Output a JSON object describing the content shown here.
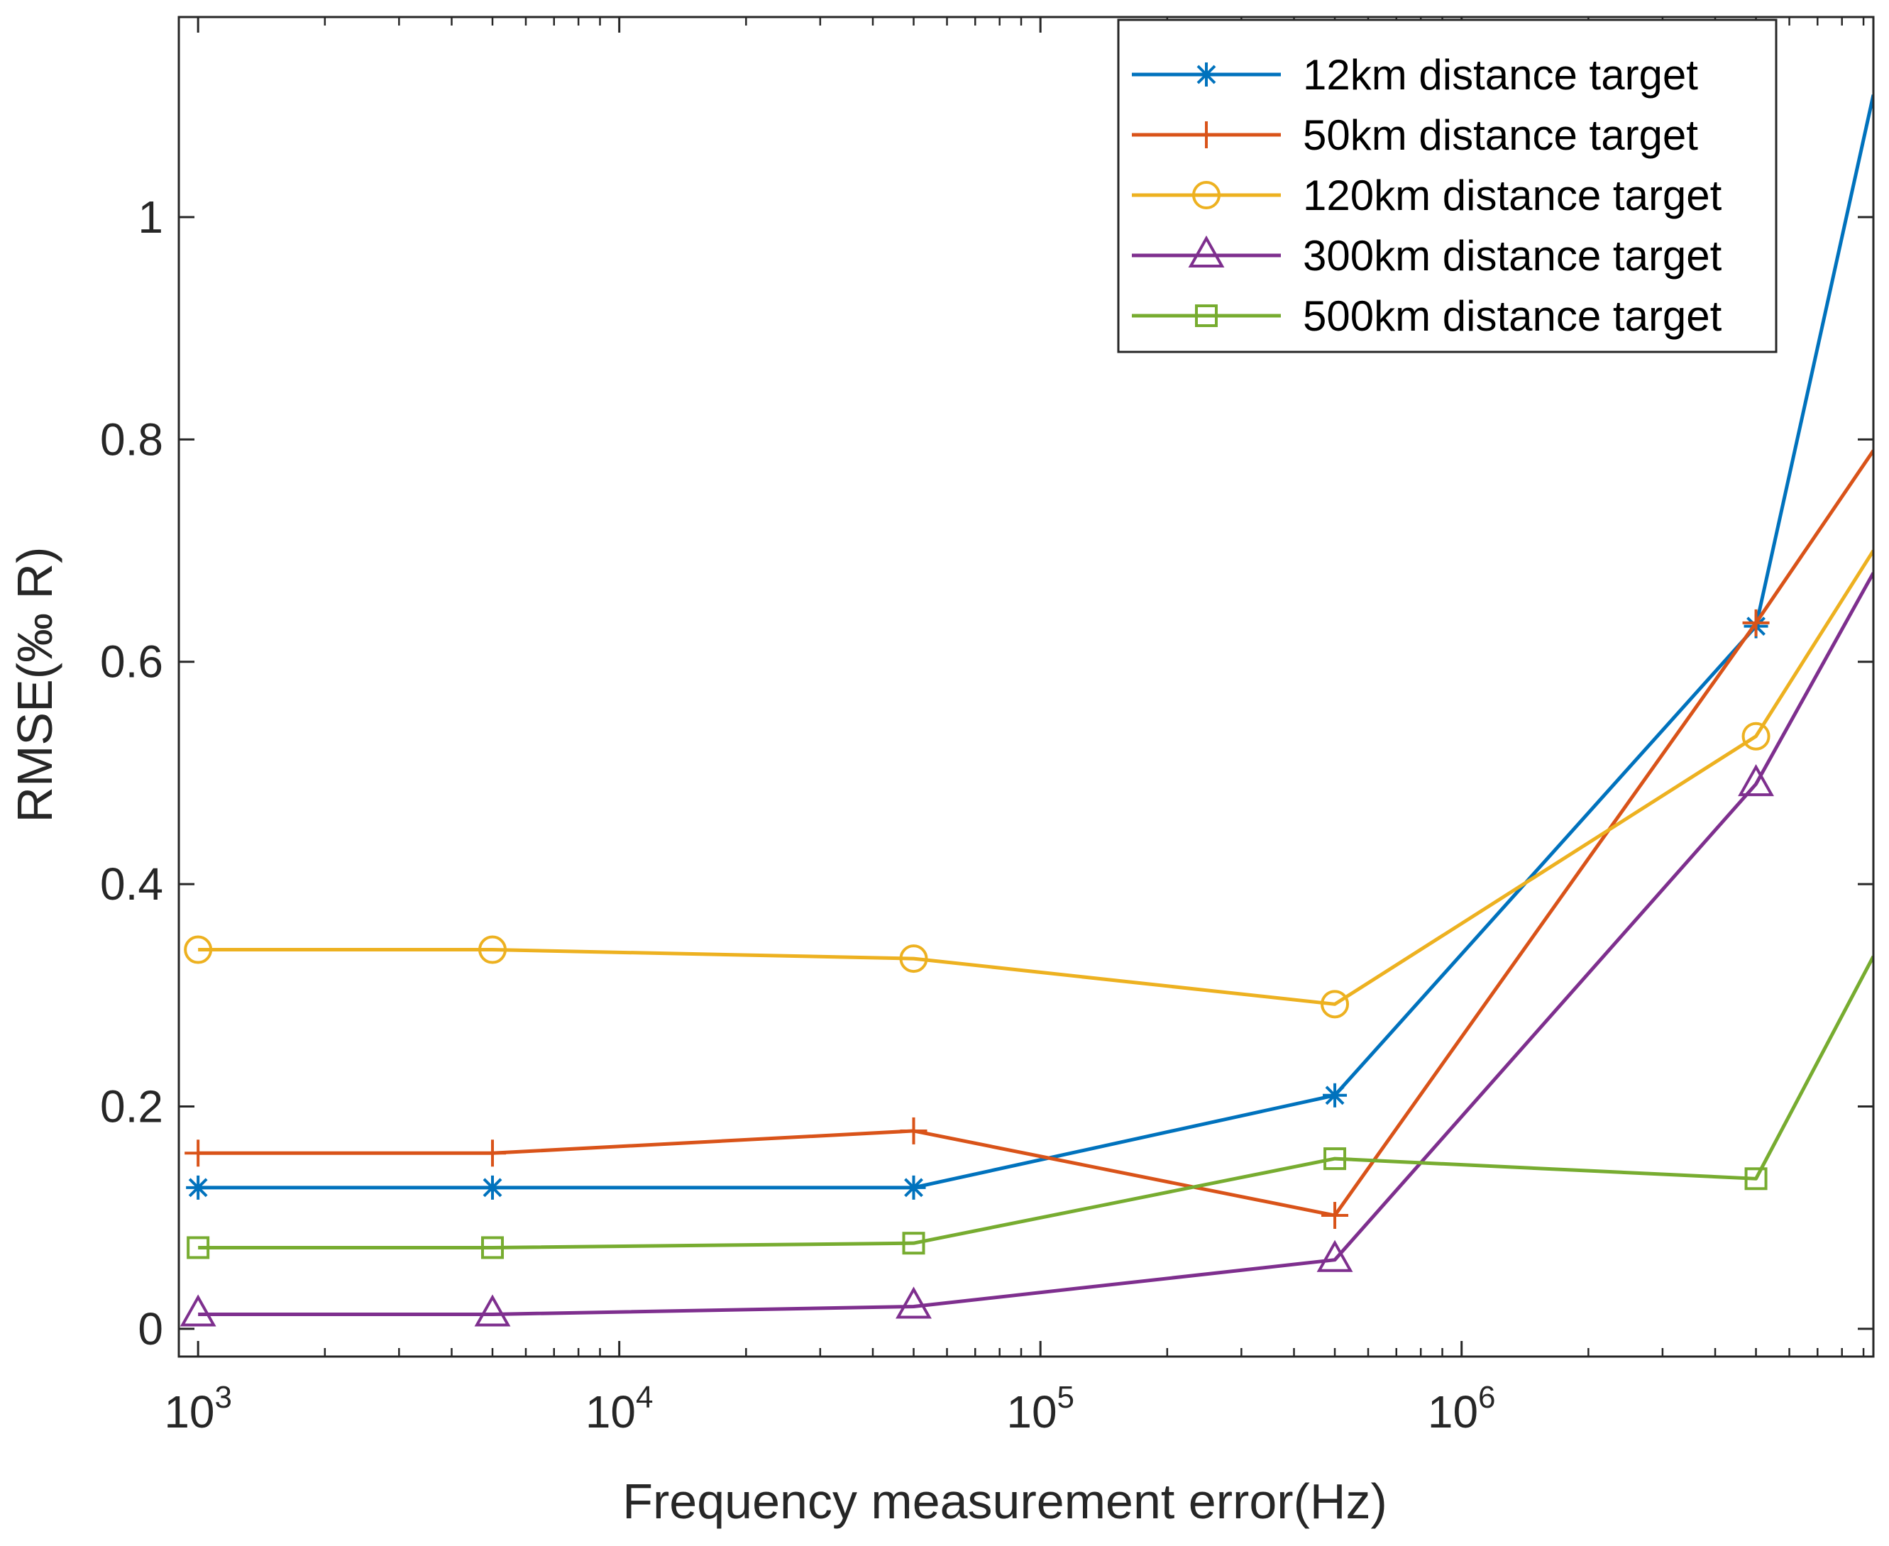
{
  "chart_data": {
    "type": "line",
    "title": "",
    "xlabel": "Frequency measurement error(Hz)",
    "ylabel": "RMSE(‰ R)",
    "xscale": "log",
    "xlim": [
      900,
      9500000
    ],
    "ylim": [
      -0.025,
      1.18
    ],
    "grid": false,
    "legend_position": "top-right",
    "x_ticks": [
      {
        "value": 1000,
        "base": "10",
        "exp": "3"
      },
      {
        "value": 10000,
        "base": "10",
        "exp": "4"
      },
      {
        "value": 100000,
        "base": "10",
        "exp": "5"
      },
      {
        "value": 1000000,
        "base": "10",
        "exp": "6"
      }
    ],
    "y_ticks": [
      {
        "value": 0,
        "label": "0"
      },
      {
        "value": 0.2,
        "label": "0.2"
      },
      {
        "value": 0.4,
        "label": "0.4"
      },
      {
        "value": 0.6,
        "label": "0.6"
      },
      {
        "value": 0.8,
        "label": "0.8"
      },
      {
        "value": 1,
        "label": "1"
      }
    ],
    "x": [
      1000,
      5000,
      50000,
      500000,
      5000000,
      9500000
    ],
    "series": [
      {
        "name": "12km distance target",
        "color": "#0072BD",
        "marker": "asterisk",
        "values": [
          0.127,
          0.127,
          0.127,
          0.21,
          0.632,
          1.11
        ]
      },
      {
        "name": "50km distance target",
        "color": "#D95319",
        "marker": "plus",
        "values": [
          0.158,
          0.158,
          0.178,
          0.102,
          0.635,
          0.79
        ]
      },
      {
        "name": "120km distance target",
        "color": "#EDB120",
        "marker": "circle",
        "values": [
          0.341,
          0.341,
          0.333,
          0.292,
          0.533,
          0.7
        ]
      },
      {
        "name": "300km distance target",
        "color": "#7E2F8E",
        "marker": "triangle",
        "values": [
          0.013,
          0.013,
          0.02,
          0.062,
          0.49,
          0.68
        ]
      },
      {
        "name": "500km distance target",
        "color": "#77AC30",
        "marker": "square",
        "values": [
          0.073,
          0.073,
          0.077,
          0.153,
          0.135,
          0.335
        ]
      }
    ]
  }
}
